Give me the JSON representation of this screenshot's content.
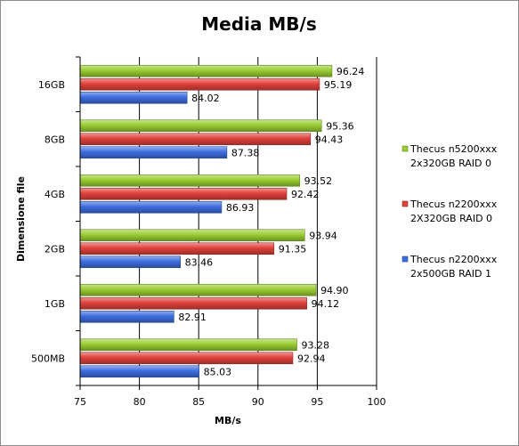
{
  "chart_data": {
    "type": "bar",
    "orientation": "horizontal",
    "title": "Media MB/s",
    "xlabel": "MB/s",
    "ylabel": "Dimensione file",
    "categories": [
      "16GB",
      "8GB",
      "4GB",
      "2GB",
      "1GB",
      "500MB"
    ],
    "xlim": [
      75,
      100
    ],
    "xticks": [
      75,
      80,
      85,
      90,
      95,
      100
    ],
    "grid": "vertical",
    "legend_position": "right",
    "series": [
      {
        "name": "Thecus n5200xxx 2x320GB RAID 0",
        "legend_lines": [
          "Thecus n5200xxx",
          "2x320GB RAID 0"
        ],
        "color": "#9acd32",
        "values": [
          96.24,
          95.36,
          93.52,
          93.94,
          94.9,
          93.28
        ]
      },
      {
        "name": "Thecus n2200xxx 2X320GB RAID 0",
        "legend_lines": [
          "Thecus n2200xxx",
          "2X320GB RAID 0"
        ],
        "color": "#e0413b",
        "values": [
          95.19,
          94.43,
          92.42,
          91.35,
          94.12,
          92.94
        ]
      },
      {
        "name": "Thecus n2200xxx 2x500GB RAID 1",
        "legend_lines": [
          "Thecus n2200xxx",
          "2x500GB RAID 1"
        ],
        "color": "#3d6ee0",
        "values": [
          84.02,
          87.38,
          86.93,
          83.46,
          82.91,
          85.03
        ]
      }
    ]
  }
}
